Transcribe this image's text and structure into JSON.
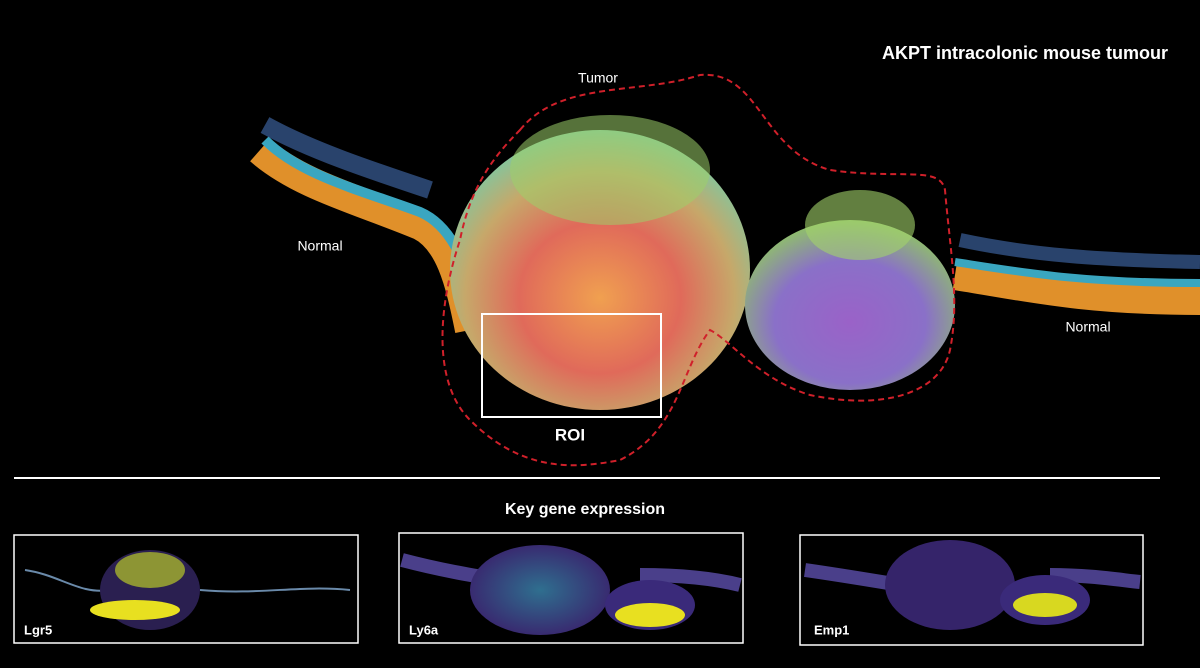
{
  "title": "AKPT intracolonic mouse tumour",
  "regions": [
    {
      "label": "Tumor"
    },
    {
      "label": "Normal"
    },
    {
      "label": "Normal"
    },
    {
      "label": "ROI"
    }
  ],
  "section_title": "Key gene expression",
  "panels": [
    {
      "label": "Lgr5"
    },
    {
      "label": "Ly6a"
    },
    {
      "label": "Emp1"
    }
  ]
}
